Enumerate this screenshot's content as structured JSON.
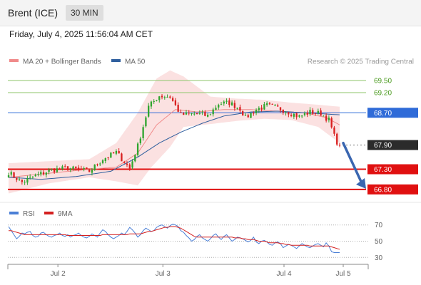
{
  "header": {
    "instrument": "Brent (ICE)",
    "timeframe": "30 MIN",
    "datetime": "Friday, July 4, 2025 11:56:04 AM CET"
  },
  "legend": {
    "items": [
      {
        "label": "MA 20 + Bollinger Bands",
        "color": "#f08a8a"
      },
      {
        "label": "MA 50",
        "color": "#2f5f9e"
      }
    ],
    "credit": "Research © 2025 Trading Central"
  },
  "indicator_legend": {
    "items": [
      {
        "label": "RSI",
        "color": "#4a7fd6"
      },
      {
        "label": "9MA",
        "color": "#d42020"
      }
    ]
  },
  "chart_data": [
    {
      "type": "candlestick",
      "title": "",
      "ylim": [
        66.55,
        69.8
      ],
      "levels": [
        {
          "value": 69.5,
          "label": "69.50",
          "kind": "resistance",
          "color": "#4a9a1e"
        },
        {
          "value": 69.2,
          "label": "69.20",
          "kind": "resistance",
          "color": "#4a9a1e"
        },
        {
          "value": 68.7,
          "label": "68.70",
          "kind": "pivot",
          "color": "#2f6bd8"
        },
        {
          "value": 67.9,
          "label": "67.90",
          "kind": "last_price",
          "color": "#2b2b2b"
        },
        {
          "value": 67.3,
          "label": "67.30",
          "kind": "support",
          "color": "#e01010"
        },
        {
          "value": 66.8,
          "label": "66.80",
          "kind": "support",
          "color": "#e01010"
        }
      ],
      "x_ticks": [
        {
          "label": "Jul 2",
          "index": 17
        },
        {
          "label": "Jul 3",
          "index": 56
        },
        {
          "label": "Jul 4",
          "index": 101
        },
        {
          "label": "Jul 5",
          "index": 123
        }
      ],
      "arrow": {
        "from_value": 67.95,
        "to_value": 66.85,
        "direction": "down",
        "color": "#3a66b0"
      },
      "close_anchors": [
        [
          0,
          67.22
        ],
        [
          5,
          66.98
        ],
        [
          10,
          67.14
        ],
        [
          16,
          67.28
        ],
        [
          22,
          67.33
        ],
        [
          30,
          67.25
        ],
        [
          35,
          67.55
        ],
        [
          40,
          67.72
        ],
        [
          45,
          67.32
        ],
        [
          48,
          67.88
        ],
        [
          52,
          68.85
        ],
        [
          56,
          69.12
        ],
        [
          60,
          69.1
        ],
        [
          64,
          68.65
        ],
        [
          70,
          68.68
        ],
        [
          74,
          68.62
        ],
        [
          78,
          68.92
        ],
        [
          82,
          68.95
        ],
        [
          86,
          68.8
        ],
        [
          88,
          68.58
        ],
        [
          92,
          68.78
        ],
        [
          96,
          68.88
        ],
        [
          100,
          68.82
        ],
        [
          104,
          68.72
        ],
        [
          108,
          68.6
        ],
        [
          112,
          68.72
        ],
        [
          116,
          68.68
        ],
        [
          119,
          68.52
        ],
        [
          121,
          68.12
        ],
        [
          122,
          67.98
        ],
        [
          123,
          67.9
        ]
      ],
      "ma20_anchors": [
        [
          0,
          67.1
        ],
        [
          15,
          67.2
        ],
        [
          30,
          67.3
        ],
        [
          40,
          67.35
        ],
        [
          48,
          67.7
        ],
        [
          55,
          68.4
        ],
        [
          62,
          68.78
        ],
        [
          70,
          68.72
        ],
        [
          80,
          68.78
        ],
        [
          90,
          68.78
        ],
        [
          100,
          68.74
        ],
        [
          110,
          68.7
        ],
        [
          118,
          68.58
        ],
        [
          123,
          68.4
        ]
      ],
      "bb_upper_anchors": [
        [
          0,
          67.45
        ],
        [
          15,
          67.5
        ],
        [
          30,
          67.55
        ],
        [
          40,
          67.95
        ],
        [
          48,
          68.7
        ],
        [
          55,
          69.55
        ],
        [
          60,
          69.75
        ],
        [
          65,
          69.6
        ],
        [
          75,
          69.1
        ],
        [
          85,
          69.05
        ],
        [
          95,
          69.02
        ],
        [
          105,
          68.95
        ],
        [
          115,
          68.9
        ],
        [
          123,
          68.85
        ]
      ],
      "bb_lower_anchors": [
        [
          0,
          66.7
        ],
        [
          15,
          66.95
        ],
        [
          30,
          67.1
        ],
        [
          40,
          67.0
        ],
        [
          48,
          66.9
        ],
        [
          53,
          67.35
        ],
        [
          60,
          67.85
        ],
        [
          65,
          68.35
        ],
        [
          75,
          68.42
        ],
        [
          85,
          68.5
        ],
        [
          95,
          68.55
        ],
        [
          105,
          68.52
        ],
        [
          115,
          68.35
        ],
        [
          123,
          67.95
        ]
      ],
      "ma50_anchors": [
        [
          0,
          67.1
        ],
        [
          12,
          67.05
        ],
        [
          25,
          67.12
        ],
        [
          38,
          67.25
        ],
        [
          48,
          67.6
        ],
        [
          56,
          67.95
        ],
        [
          64,
          68.22
        ],
        [
          72,
          68.44
        ],
        [
          80,
          68.62
        ],
        [
          90,
          68.72
        ],
        [
          100,
          68.74
        ],
        [
          110,
          68.7
        ],
        [
          123,
          68.65
        ]
      ]
    },
    {
      "type": "line",
      "title": "",
      "ylabel": "RSI",
      "ylim": [
        25,
        75
      ],
      "y_ticks": [
        70,
        50,
        30
      ],
      "series": [
        {
          "name": "RSI",
          "color": "#4a7fd6",
          "values": [
            68,
            63,
            58,
            53,
            56,
            60,
            59,
            61,
            62,
            57,
            55,
            56,
            60,
            61,
            58,
            56,
            55,
            57,
            58,
            60,
            57,
            56,
            58,
            55,
            57,
            58,
            60,
            57,
            55,
            54,
            56,
            59,
            57,
            55,
            60,
            64,
            62,
            58,
            55,
            53,
            55,
            57,
            60,
            58,
            62,
            67,
            64,
            60,
            55,
            58,
            63,
            66,
            64,
            62,
            63,
            67,
            69,
            70,
            68,
            66,
            69,
            71,
            70,
            68,
            63,
            61,
            57,
            54,
            50,
            52,
            56,
            58,
            54,
            52,
            50,
            53,
            57,
            59,
            55,
            52,
            56,
            58,
            54,
            50,
            52,
            55,
            54,
            53,
            51,
            49,
            51,
            55,
            49,
            47,
            50,
            51,
            49,
            46,
            45,
            48,
            49,
            47,
            42,
            44,
            46,
            45,
            43,
            41,
            44,
            47,
            45,
            43,
            42,
            44,
            46,
            47,
            45,
            43,
            48,
            44,
            37,
            36,
            36,
            36
          ]
        },
        {
          "name": "9MA",
          "color": "#d42020",
          "values": [
            63,
            63,
            62,
            61,
            60,
            59,
            58,
            58,
            58,
            58,
            58,
            58,
            58,
            58,
            58,
            58,
            58,
            58,
            58,
            58,
            58,
            58,
            57,
            57,
            57,
            57,
            57,
            57,
            57,
            57,
            57,
            57,
            57,
            57,
            57,
            58,
            58,
            58,
            58,
            58,
            58,
            58,
            58,
            58,
            58,
            59,
            59,
            59,
            59,
            59,
            60,
            61,
            62,
            62,
            63,
            64,
            65,
            66,
            67,
            67,
            68,
            68,
            68,
            67,
            66,
            64,
            62,
            60,
            58,
            56,
            55,
            55,
            55,
            55,
            55,
            55,
            55,
            55,
            55,
            55,
            55,
            55,
            55,
            55,
            54,
            54,
            54,
            53,
            53,
            52,
            52,
            52,
            51,
            50,
            50,
            50,
            49,
            48,
            48,
            48,
            48,
            47,
            47,
            46,
            46,
            45,
            45,
            45,
            45,
            45,
            45,
            45,
            44,
            44,
            44,
            44,
            44,
            44,
            44,
            44,
            43,
            42,
            41,
            40
          ]
        }
      ],
      "x_ticks": [
        {
          "label": "Jul 2",
          "index": 17
        },
        {
          "label": "Jul 3",
          "index": 56
        },
        {
          "label": "Jul 4",
          "index": 101
        },
        {
          "label": "Jul 5",
          "index": 123
        }
      ]
    }
  ]
}
